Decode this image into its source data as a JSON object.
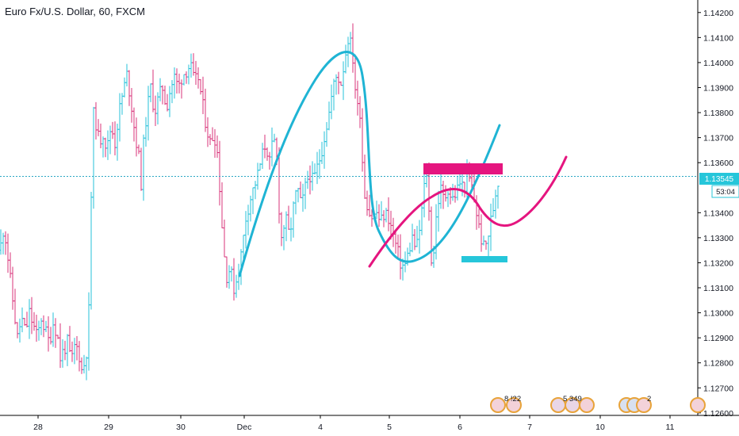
{
  "header": {
    "title": "Euro Fx/U.S. Dollar, 60, FXCM"
  },
  "colors": {
    "up_bar": "#26c0d9",
    "down_bar": "#d8337a",
    "cyan_drawing": "#1fb4d4",
    "magenta_drawing": "#e5157f",
    "last_price_line": "#2aa7c4",
    "countdown_bg": "#26c6da"
  },
  "price_label": "1.13545",
  "countdown_label": "53:04",
  "events": {
    "group1_label": "8 !22",
    "group2_label": "5 349",
    "group3_label": "2"
  },
  "chart_data": {
    "type": "ohlc",
    "title": "Euro Fx/U.S. Dollar, 60, FXCM",
    "xlabel": "",
    "ylabel": "",
    "ylim": [
      1.1259,
      1.1425
    ],
    "grid": false,
    "x_ticks": [
      "28",
      "29",
      "30",
      "Dec",
      "4",
      "5",
      "6",
      "7",
      "10",
      "11"
    ],
    "y_ticks": [
      "1.12600",
      "1.12700",
      "1.12800",
      "1.12900",
      "1.13000",
      "1.13100",
      "1.13200",
      "1.13300",
      "1.13400",
      "1.13600",
      "1.13700",
      "1.13800",
      "1.13900",
      "1.14000",
      "1.14100",
      "1.14200"
    ],
    "y_tick_values": [
      1.126,
      1.127,
      1.128,
      1.129,
      1.13,
      1.131,
      1.132,
      1.133,
      1.134,
      1.136,
      1.137,
      1.138,
      1.139,
      1.14,
      1.141,
      1.142
    ],
    "last_price": 1.13545,
    "series": [
      {
        "price_path": [
          [
            0,
            1.1325
          ],
          [
            5,
            1.1335
          ],
          [
            10,
            1.1322
          ],
          [
            14,
            1.131
          ],
          [
            18,
            1.13
          ],
          [
            22,
            1.129
          ],
          [
            27,
            1.1298
          ],
          [
            32,
            1.1292
          ],
          [
            37,
            1.13
          ],
          [
            42,
            1.1295
          ],
          [
            47,
            1.129
          ],
          [
            52,
            1.1298
          ],
          [
            57,
            1.1293
          ],
          [
            62,
            1.1288
          ],
          [
            67,
            1.1296
          ],
          [
            72,
            1.1292
          ],
          [
            76,
            1.1282
          ],
          [
            80,
            1.1285
          ],
          [
            85,
            1.1288
          ],
          [
            90,
            1.128
          ],
          [
            95,
            1.1288
          ],
          [
            100,
            1.1283
          ],
          [
            104,
            1.1275
          ],
          [
            108,
            1.1284
          ],
          [
            111,
            1.1286
          ],
          [
            114,
            1.133
          ],
          [
            117,
            1.138
          ],
          [
            121,
            1.1376
          ],
          [
            125,
            1.1368
          ],
          [
            130,
            1.1372
          ],
          [
            135,
            1.1365
          ],
          [
            140,
            1.1375
          ],
          [
            145,
            1.1368
          ],
          [
            150,
            1.138
          ],
          [
            155,
            1.1388
          ],
          [
            160,
            1.1395
          ],
          [
            165,
            1.1385
          ],
          [
            170,
            1.1372
          ],
          [
            175,
            1.1362
          ],
          [
            178,
            1.1352
          ],
          [
            182,
            1.1372
          ],
          [
            186,
            1.1382
          ],
          [
            190,
            1.139
          ],
          [
            195,
            1.138
          ],
          [
            200,
            1.1386
          ],
          [
            205,
            1.139
          ],
          [
            210,
            1.1382
          ],
          [
            215,
            1.139
          ],
          [
            220,
            1.1394
          ],
          [
            225,
            1.139
          ],
          [
            230,
            1.1395
          ],
          [
            235,
            1.1397
          ],
          [
            240,
            1.1399
          ],
          [
            245,
            1.1392
          ],
          [
            250,
            1.1394
          ],
          [
            255,
            1.1384
          ],
          [
            260,
            1.1375
          ],
          [
            265,
            1.1368
          ],
          [
            270,
            1.1372
          ],
          [
            275,
            1.1362
          ],
          [
            278,
            1.1345
          ],
          [
            282,
            1.1325
          ],
          [
            286,
            1.1315
          ],
          [
            290,
            1.1318
          ],
          [
            295,
            1.131
          ],
          [
            300,
            1.1315
          ],
          [
            305,
            1.1325
          ],
          [
            310,
            1.1338
          ],
          [
            315,
            1.1345
          ],
          [
            320,
            1.135
          ],
          [
            325,
            1.1355
          ],
          [
            330,
            1.1362
          ],
          [
            335,
            1.1368
          ],
          [
            340,
            1.136
          ],
          [
            345,
            1.137
          ],
          [
            350,
            1.136
          ],
          [
            352,
            1.1342
          ],
          [
            355,
            1.133
          ],
          [
            360,
            1.1338
          ],
          [
            365,
            1.133
          ],
          [
            370,
            1.1342
          ],
          [
            375,
            1.135
          ],
          [
            380,
            1.1342
          ],
          [
            385,
            1.135
          ],
          [
            390,
            1.1356
          ],
          [
            395,
            1.1352
          ],
          [
            400,
            1.1358
          ],
          [
            405,
            1.1364
          ],
          [
            410,
            1.1372
          ],
          [
            415,
            1.138
          ],
          [
            420,
            1.139
          ],
          [
            425,
            1.1395
          ],
          [
            430,
            1.1392
          ],
          [
            435,
            1.1402
          ],
          [
            440,
            1.1412
          ],
          [
            443,
            1.1405
          ],
          [
            446,
            1.14
          ],
          [
            450,
            1.138
          ],
          [
            453,
            1.1385
          ],
          [
            456,
            1.1372
          ],
          [
            458,
            1.135
          ],
          [
            462,
            1.1345
          ],
          [
            466,
            1.134
          ],
          [
            470,
            1.1338
          ],
          [
            475,
            1.134
          ],
          [
            480,
            1.1336
          ],
          [
            485,
            1.134
          ],
          [
            490,
            1.1338
          ],
          [
            495,
            1.1332
          ],
          [
            500,
            1.1326
          ],
          [
            505,
            1.132
          ],
          [
            510,
            1.1318
          ],
          [
            515,
            1.1324
          ],
          [
            520,
            1.133
          ],
          [
            525,
            1.1325
          ],
          [
            530,
            1.1335
          ],
          [
            535,
            1.135
          ],
          [
            538,
            1.1356
          ],
          [
            541,
            1.134
          ],
          [
            544,
            1.1322
          ],
          [
            547,
            1.1325
          ],
          [
            550,
            1.1338
          ],
          [
            555,
            1.135
          ],
          [
            560,
            1.1345
          ],
          [
            565,
            1.135
          ],
          [
            570,
            1.1345
          ],
          [
            575,
            1.1348
          ],
          [
            580,
            1.1352
          ],
          [
            585,
            1.135
          ],
          [
            590,
            1.1355
          ],
          [
            595,
            1.135
          ],
          [
            600,
            1.1342
          ],
          [
            605,
            1.1332
          ],
          [
            610,
            1.1326
          ],
          [
            614,
            1.1328
          ],
          [
            618,
            1.1335
          ],
          [
            622,
            1.1342
          ],
          [
            626,
            1.135
          ],
          [
            629,
            1.1354
          ]
        ]
      }
    ]
  }
}
